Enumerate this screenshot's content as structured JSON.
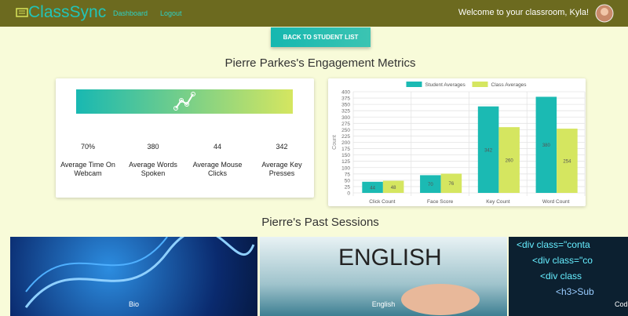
{
  "nav": {
    "brand": "ClassSync",
    "links": [
      "Dashboard",
      "Logout"
    ],
    "welcome": "Welcome to your classroom, Kyla!"
  },
  "button": "BACK TO STUDENT LIST",
  "metrics_title": "Pierre Parkes's Engagement Metrics",
  "metrics": [
    {
      "value": "70%",
      "label": "Average Time On Webcam"
    },
    {
      "value": "380",
      "label": "Average Words Spoken"
    },
    {
      "value": "44",
      "label": "Average Mouse Clicks"
    },
    {
      "value": "342",
      "label": "Average Key Presses"
    }
  ],
  "chart_data": {
    "type": "bar",
    "ylabel": "Count",
    "categories": [
      "Click Count",
      "Face Score",
      "Key Count",
      "Word Count"
    ],
    "series": [
      {
        "name": "Student Averages",
        "color": "#1bbab3",
        "values": [
          44,
          70,
          342,
          380
        ]
      },
      {
        "name": "Class Averages",
        "color": "#d5e660",
        "values": [
          48,
          76,
          260,
          254
        ]
      }
    ],
    "ylim": [
      0,
      400
    ],
    "yticks": [
      0,
      25,
      50,
      75,
      100,
      125,
      150,
      175,
      200,
      225,
      250,
      275,
      300,
      325,
      350,
      375,
      400
    ],
    "grid": true,
    "legend": "top"
  },
  "sessions_title": "Pierre's Past Sessions",
  "sessions": [
    "Bio",
    "English",
    "Coding"
  ]
}
